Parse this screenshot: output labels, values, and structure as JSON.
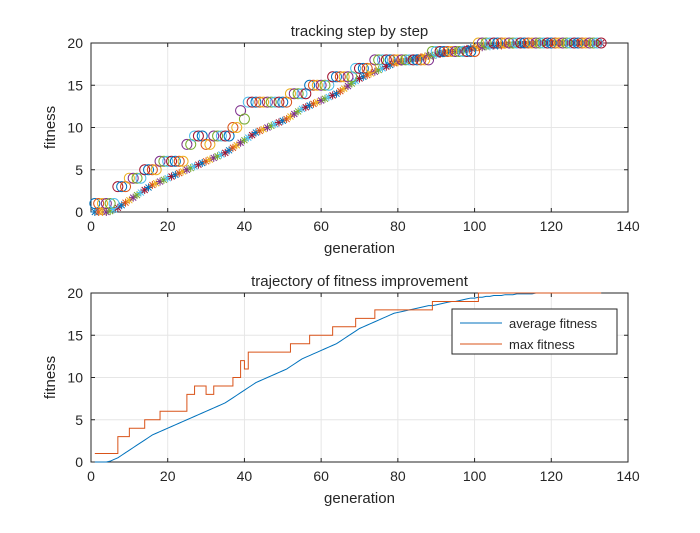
{
  "chart_data": [
    {
      "type": "scatter",
      "title": "tracking step by step",
      "xlabel": "generation",
      "ylabel": "fitness",
      "xlim": [
        0,
        140
      ],
      "ylim": [
        0,
        20
      ],
      "xticks": [
        "0",
        "20",
        "40",
        "60",
        "80",
        "100",
        "120",
        "140"
      ],
      "yticks": [
        "0",
        "5",
        "10",
        "15",
        "20"
      ],
      "grid": true,
      "markers": {
        "circle": "max fitness per generation (one circle per run colour)",
        "star": "average fitness per generation"
      },
      "series_colors": [
        "#0072BD",
        "#D95319",
        "#EDB120",
        "#7E2F8E",
        "#77AC30",
        "#4DBEEE",
        "#A2142F"
      ],
      "max_points": [
        [
          1,
          1
        ],
        [
          2,
          1
        ],
        [
          3,
          1
        ],
        [
          4,
          1
        ],
        [
          5,
          1
        ],
        [
          6,
          1
        ],
        [
          7,
          3
        ],
        [
          8,
          3
        ],
        [
          9,
          3
        ],
        [
          10,
          4
        ],
        [
          11,
          4
        ],
        [
          12,
          4
        ],
        [
          13,
          4
        ],
        [
          14,
          5
        ],
        [
          15,
          5
        ],
        [
          16,
          5
        ],
        [
          17,
          5
        ],
        [
          18,
          6
        ],
        [
          19,
          6
        ],
        [
          20,
          6
        ],
        [
          21,
          6
        ],
        [
          22,
          6
        ],
        [
          23,
          6
        ],
        [
          24,
          6
        ],
        [
          25,
          8
        ],
        [
          26,
          8
        ],
        [
          27,
          9
        ],
        [
          28,
          9
        ],
        [
          29,
          9
        ],
        [
          30,
          8
        ],
        [
          31,
          8
        ],
        [
          32,
          9
        ],
        [
          33,
          9
        ],
        [
          34,
          9
        ],
        [
          35,
          9
        ],
        [
          36,
          9
        ],
        [
          37,
          10
        ],
        [
          38,
          10
        ],
        [
          39,
          12
        ],
        [
          40,
          11
        ],
        [
          41,
          13
        ],
        [
          42,
          13
        ],
        [
          43,
          13
        ],
        [
          44,
          13
        ],
        [
          45,
          13
        ],
        [
          46,
          13
        ],
        [
          47,
          13
        ],
        [
          48,
          13
        ],
        [
          49,
          13
        ],
        [
          50,
          13
        ],
        [
          51,
          13
        ],
        [
          52,
          14
        ],
        [
          53,
          14
        ],
        [
          54,
          14
        ],
        [
          55,
          14
        ],
        [
          56,
          14
        ],
        [
          57,
          15
        ],
        [
          58,
          15
        ],
        [
          59,
          15
        ],
        [
          60,
          15
        ],
        [
          61,
          15
        ],
        [
          62,
          15
        ],
        [
          63,
          16
        ],
        [
          64,
          16
        ],
        [
          65,
          16
        ],
        [
          66,
          16
        ],
        [
          67,
          16
        ],
        [
          68,
          16
        ],
        [
          69,
          17
        ],
        [
          70,
          17
        ],
        [
          71,
          17
        ],
        [
          72,
          17
        ],
        [
          73,
          17
        ],
        [
          74,
          18
        ],
        [
          75,
          18
        ],
        [
          76,
          18
        ],
        [
          77,
          18
        ],
        [
          78,
          18
        ],
        [
          79,
          18
        ],
        [
          80,
          18
        ],
        [
          81,
          18
        ],
        [
          82,
          18
        ],
        [
          83,
          18
        ],
        [
          84,
          18
        ],
        [
          85,
          18
        ],
        [
          86,
          18
        ],
        [
          87,
          18
        ],
        [
          88,
          18
        ],
        [
          89,
          19
        ],
        [
          90,
          19
        ],
        [
          91,
          19
        ],
        [
          92,
          19
        ],
        [
          93,
          19
        ],
        [
          94,
          19
        ],
        [
          95,
          19
        ],
        [
          96,
          19
        ],
        [
          97,
          19
        ],
        [
          98,
          19
        ],
        [
          99,
          19
        ],
        [
          100,
          19
        ],
        [
          101,
          20
        ],
        [
          102,
          20
        ],
        [
          103,
          20
        ],
        [
          104,
          20
        ],
        [
          105,
          20
        ],
        [
          106,
          20
        ],
        [
          107,
          20
        ],
        [
          108,
          20
        ],
        [
          109,
          20
        ],
        [
          110,
          20
        ],
        [
          111,
          20
        ],
        [
          112,
          20
        ],
        [
          113,
          20
        ],
        [
          114,
          20
        ],
        [
          115,
          20
        ],
        [
          116,
          20
        ],
        [
          117,
          20
        ],
        [
          118,
          20
        ],
        [
          119,
          20
        ],
        [
          120,
          20
        ],
        [
          121,
          20
        ],
        [
          122,
          20
        ],
        [
          123,
          20
        ],
        [
          124,
          20
        ],
        [
          125,
          20
        ],
        [
          126,
          20
        ],
        [
          127,
          20
        ],
        [
          128,
          20
        ],
        [
          129,
          20
        ],
        [
          130,
          20
        ],
        [
          131,
          20
        ],
        [
          132,
          20
        ],
        [
          133,
          20
        ]
      ],
      "avg_points": [
        [
          1,
          0
        ],
        [
          2,
          0
        ],
        [
          3,
          0
        ],
        [
          4,
          0
        ],
        [
          5,
          0.1
        ],
        [
          6,
          0.3
        ],
        [
          7,
          0.5
        ],
        [
          8,
          0.8
        ],
        [
          9,
          1.1
        ],
        [
          10,
          1.4
        ],
        [
          11,
          1.7
        ],
        [
          12,
          2.0
        ],
        [
          13,
          2.3
        ],
        [
          14,
          2.6
        ],
        [
          15,
          2.9
        ],
        [
          16,
          3.2
        ],
        [
          17,
          3.4
        ],
        [
          18,
          3.6
        ],
        [
          19,
          3.8
        ],
        [
          20,
          4.0
        ],
        [
          21,
          4.2
        ],
        [
          22,
          4.4
        ],
        [
          23,
          4.6
        ],
        [
          24,
          4.8
        ],
        [
          25,
          5.0
        ],
        [
          26,
          5.2
        ],
        [
          27,
          5.4
        ],
        [
          28,
          5.6
        ],
        [
          29,
          5.8
        ],
        [
          30,
          6.0
        ],
        [
          31,
          6.2
        ],
        [
          32,
          6.4
        ],
        [
          33,
          6.6
        ],
        [
          34,
          6.8
        ],
        [
          35,
          7.0
        ],
        [
          36,
          7.3
        ],
        [
          37,
          7.6
        ],
        [
          38,
          7.9
        ],
        [
          39,
          8.2
        ],
        [
          40,
          8.5
        ],
        [
          41,
          8.8
        ],
        [
          42,
          9.1
        ],
        [
          43,
          9.4
        ],
        [
          44,
          9.6
        ],
        [
          45,
          9.8
        ],
        [
          46,
          10.0
        ],
        [
          47,
          10.2
        ],
        [
          48,
          10.4
        ],
        [
          49,
          10.6
        ],
        [
          50,
          10.8
        ],
        [
          51,
          11.0
        ],
        [
          52,
          11.3
        ],
        [
          53,
          11.6
        ],
        [
          54,
          11.9
        ],
        [
          55,
          12.2
        ],
        [
          56,
          12.4
        ],
        [
          57,
          12.6
        ],
        [
          58,
          12.8
        ],
        [
          59,
          13.0
        ],
        [
          60,
          13.2
        ],
        [
          61,
          13.4
        ],
        [
          62,
          13.6
        ],
        [
          63,
          13.8
        ],
        [
          64,
          14.0
        ],
        [
          65,
          14.3
        ],
        [
          66,
          14.6
        ],
        [
          67,
          14.9
        ],
        [
          68,
          15.2
        ],
        [
          69,
          15.5
        ],
        [
          70,
          15.8
        ],
        [
          71,
          16.0
        ],
        [
          72,
          16.2
        ],
        [
          73,
          16.4
        ],
        [
          74,
          16.6
        ],
        [
          75,
          16.8
        ],
        [
          76,
          17.0
        ],
        [
          77,
          17.2
        ],
        [
          78,
          17.4
        ],
        [
          79,
          17.6
        ],
        [
          80,
          17.7
        ],
        [
          81,
          17.8
        ],
        [
          82,
          17.9
        ],
        [
          83,
          18.0
        ],
        [
          84,
          18.1
        ],
        [
          85,
          18.2
        ],
        [
          86,
          18.3
        ],
        [
          87,
          18.4
        ],
        [
          88,
          18.5
        ],
        [
          89,
          18.5
        ],
        [
          90,
          18.6
        ],
        [
          91,
          18.7
        ],
        [
          92,
          18.8
        ],
        [
          93,
          18.9
        ],
        [
          94,
          19.0
        ],
        [
          95,
          19.0
        ],
        [
          96,
          19.1
        ],
        [
          97,
          19.2
        ],
        [
          98,
          19.3
        ],
        [
          99,
          19.4
        ],
        [
          100,
          19.4
        ],
        [
          101,
          19.5
        ],
        [
          102,
          19.5
        ],
        [
          103,
          19.6
        ],
        [
          104,
          19.6
        ],
        [
          105,
          19.7
        ],
        [
          106,
          19.7
        ],
        [
          107,
          19.7
        ],
        [
          108,
          19.8
        ],
        [
          109,
          19.8
        ],
        [
          110,
          19.8
        ],
        [
          111,
          19.9
        ],
        [
          112,
          19.9
        ],
        [
          113,
          19.9
        ],
        [
          114,
          19.9
        ],
        [
          115,
          19.9
        ],
        [
          116,
          20
        ],
        [
          117,
          20
        ],
        [
          118,
          20
        ],
        [
          119,
          20
        ],
        [
          120,
          20
        ],
        [
          121,
          20
        ],
        [
          122,
          20
        ],
        [
          123,
          20
        ],
        [
          124,
          20
        ],
        [
          125,
          20
        ],
        [
          126,
          20
        ],
        [
          127,
          20
        ],
        [
          128,
          20
        ],
        [
          129,
          20
        ],
        [
          130,
          20
        ],
        [
          131,
          20
        ],
        [
          132,
          20
        ],
        [
          133,
          20
        ]
      ]
    },
    {
      "type": "line",
      "title": "trajectory of fitness improvement",
      "xlabel": "generation",
      "ylabel": "fitness",
      "xlim": [
        0,
        140
      ],
      "ylim": [
        0,
        20
      ],
      "xticks": [
        "0",
        "20",
        "40",
        "60",
        "80",
        "100",
        "120",
        "140"
      ],
      "yticks": [
        "0",
        "5",
        "10",
        "15",
        "20"
      ],
      "grid": true,
      "legend_position": "top-right",
      "series": [
        {
          "name": "average fitness",
          "color": "#0072BD",
          "ref": "avg_points"
        },
        {
          "name": "max fitness",
          "color": "#D95319",
          "ref": "max_points"
        }
      ]
    }
  ]
}
